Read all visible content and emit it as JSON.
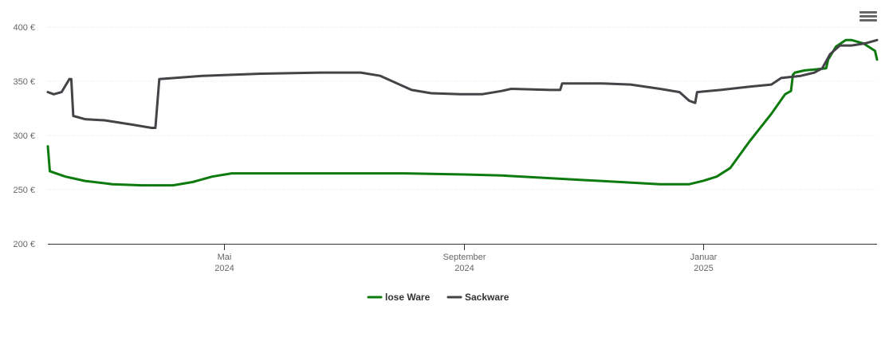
{
  "chart_data": {
    "type": "line",
    "x_type": "date",
    "xlim": [
      "2024-02-01",
      "2025-03-31"
    ],
    "ylim": [
      200,
      400
    ],
    "y_ticks": [
      200,
      250,
      300,
      350,
      400
    ],
    "y_tick_format": "{v} €",
    "x_ticks": [
      {
        "date": "2024-05-01",
        "month": "Mai",
        "year": "2024"
      },
      {
        "date": "2024-09-01",
        "month": "September",
        "year": "2024"
      },
      {
        "date": "2025-01-01",
        "month": "Januar",
        "year": "2025"
      }
    ],
    "grid": {
      "horizontal": true,
      "vertical": false
    },
    "legend_position": "bottom-center",
    "series": [
      {
        "name": "lose Ware",
        "color": "#0c7a0c",
        "points": [
          [
            "2024-02-01",
            290
          ],
          [
            "2024-02-02",
            267
          ],
          [
            "2024-02-10",
            262
          ],
          [
            "2024-02-20",
            258
          ],
          [
            "2024-03-05",
            255
          ],
          [
            "2024-03-20",
            254
          ],
          [
            "2024-04-05",
            254
          ],
          [
            "2024-04-15",
            257
          ],
          [
            "2024-04-25",
            262
          ],
          [
            "2024-05-05",
            265
          ],
          [
            "2024-05-20",
            265
          ],
          [
            "2024-07-01",
            265
          ],
          [
            "2024-08-01",
            265
          ],
          [
            "2024-09-01",
            264
          ],
          [
            "2024-09-20",
            263
          ],
          [
            "2024-10-10",
            261
          ],
          [
            "2024-10-30",
            259
          ],
          [
            "2024-11-20",
            257
          ],
          [
            "2024-12-10",
            255
          ],
          [
            "2024-12-25",
            255
          ],
          [
            "2025-01-01",
            258
          ],
          [
            "2025-01-08",
            262
          ],
          [
            "2025-01-15",
            270
          ],
          [
            "2025-01-25",
            295
          ],
          [
            "2025-02-05",
            320
          ],
          [
            "2025-02-12",
            338
          ],
          [
            "2025-02-15",
            341
          ],
          [
            "2025-02-16",
            356
          ],
          [
            "2025-02-17",
            358
          ],
          [
            "2025-02-22",
            360
          ],
          [
            "2025-02-28",
            361
          ],
          [
            "2025-03-05",
            362
          ],
          [
            "2025-03-06",
            370
          ],
          [
            "2025-03-10",
            382
          ],
          [
            "2025-03-15",
            388
          ],
          [
            "2025-03-18",
            388
          ],
          [
            "2025-03-24",
            385
          ],
          [
            "2025-03-30",
            378
          ],
          [
            "2025-03-31",
            370
          ]
        ]
      },
      {
        "name": "Sackware",
        "color": "#434348",
        "points": [
          [
            "2024-02-01",
            340
          ],
          [
            "2024-02-04",
            338
          ],
          [
            "2024-02-08",
            340
          ],
          [
            "2024-02-12",
            352
          ],
          [
            "2024-02-13",
            352
          ],
          [
            "2024-02-14",
            318
          ],
          [
            "2024-02-20",
            315
          ],
          [
            "2024-03-01",
            314
          ],
          [
            "2024-03-15",
            310
          ],
          [
            "2024-03-25",
            307
          ],
          [
            "2024-03-27",
            307
          ],
          [
            "2024-03-29",
            352
          ],
          [
            "2024-04-20",
            355
          ],
          [
            "2024-05-20",
            357
          ],
          [
            "2024-06-20",
            358
          ],
          [
            "2024-07-10",
            358
          ],
          [
            "2024-07-20",
            355
          ],
          [
            "2024-08-05",
            342
          ],
          [
            "2024-08-15",
            339
          ],
          [
            "2024-08-30",
            338
          ],
          [
            "2024-09-10",
            338
          ],
          [
            "2024-09-20",
            341
          ],
          [
            "2024-09-25",
            343
          ],
          [
            "2024-10-15",
            342
          ],
          [
            "2024-10-20",
            342
          ],
          [
            "2024-10-21",
            348
          ],
          [
            "2024-11-10",
            348
          ],
          [
            "2024-11-25",
            347
          ],
          [
            "2024-12-10",
            343
          ],
          [
            "2024-12-20",
            340
          ],
          [
            "2024-12-25",
            332
          ],
          [
            "2024-12-28",
            330
          ],
          [
            "2024-12-29",
            340
          ],
          [
            "2025-01-10",
            342
          ],
          [
            "2025-01-25",
            345
          ],
          [
            "2025-02-05",
            347
          ],
          [
            "2025-02-10",
            353
          ],
          [
            "2025-02-20",
            355
          ],
          [
            "2025-02-27",
            358
          ],
          [
            "2025-03-03",
            362
          ],
          [
            "2025-03-07",
            375
          ],
          [
            "2025-03-12",
            383
          ],
          [
            "2025-03-18",
            383
          ],
          [
            "2025-03-25",
            385
          ],
          [
            "2025-03-31",
            388
          ]
        ]
      }
    ]
  }
}
